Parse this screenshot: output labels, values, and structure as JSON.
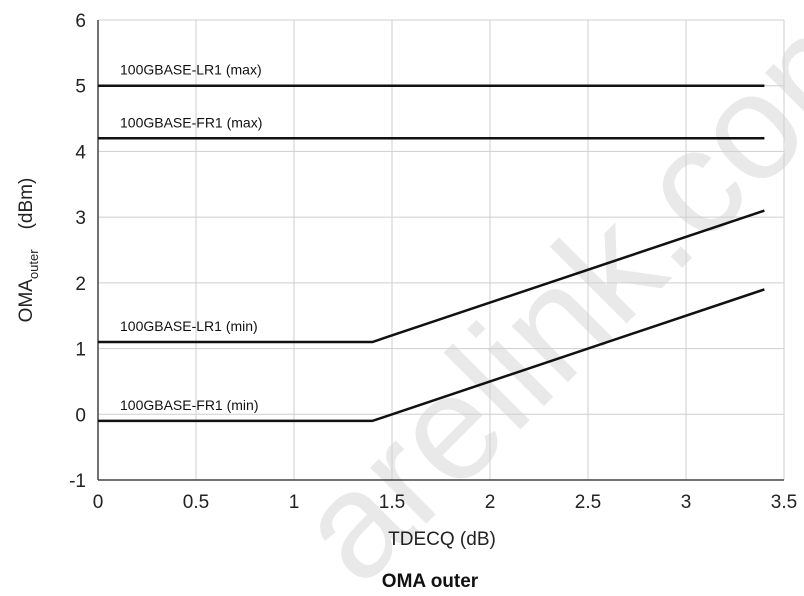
{
  "chart_data": {
    "type": "line",
    "caption": "OMA outer",
    "xlabel": "TDECQ (dB)",
    "ylabel_main": "OMA",
    "ylabel_sub": "outer",
    "ylabel_unit": "(dBm)",
    "xlim": [
      0,
      3.5
    ],
    "ylim": [
      -1,
      6
    ],
    "x_ticks": [
      "0",
      "0.5",
      "1",
      "1.5",
      "2",
      "2.5",
      "3",
      "3.5"
    ],
    "y_ticks": [
      "-1",
      "0",
      "1",
      "2",
      "3",
      "4",
      "5",
      "6"
    ],
    "grid": true,
    "watermark": "arelink.com",
    "series": [
      {
        "name": "100GBASE-LR1 (max)",
        "points": [
          [
            0,
            5.0
          ],
          [
            3.4,
            5.0
          ]
        ]
      },
      {
        "name": "100GBASE-FR1 (max)",
        "points": [
          [
            0,
            4.2
          ],
          [
            3.4,
            4.2
          ]
        ]
      },
      {
        "name": "100GBASE-LR1 (min)",
        "points": [
          [
            0,
            1.1
          ],
          [
            1.4,
            1.1
          ],
          [
            3.4,
            3.1
          ]
        ]
      },
      {
        "name": "100GBASE-FR1 (min)",
        "points": [
          [
            0,
            -0.1
          ],
          [
            1.4,
            -0.1
          ],
          [
            3.4,
            1.9
          ]
        ]
      }
    ]
  }
}
